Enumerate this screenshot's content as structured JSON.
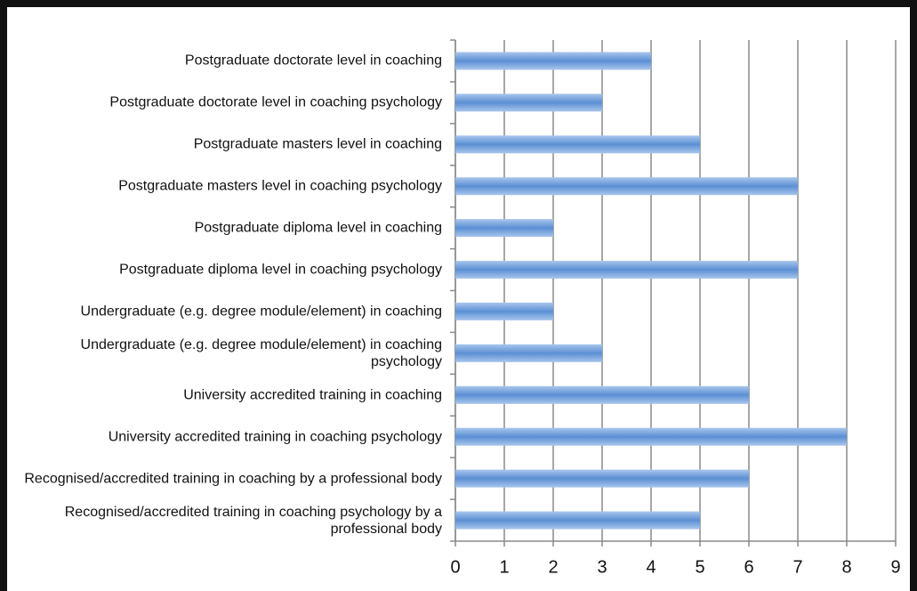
{
  "chart_data": {
    "type": "barh",
    "categories": [
      "Postgraduate doctorate level in coaching",
      "Postgraduate doctorate level in coaching psychology",
      "Postgraduate masters level in coaching",
      "Postgraduate masters level in coaching psychology",
      "Postgraduate diploma level in coaching",
      "Postgraduate diploma level in coaching psychology",
      "Undergraduate (e.g. degree module/element) in coaching",
      "Undergraduate (e.g. degree module/element) in coaching psychology",
      "University accredited training in coaching",
      "University accredited training in coaching psychology",
      "Recognised/accredited training in coaching by a professional body",
      "Recognised/accredited training in coaching psychology by a professional body"
    ],
    "values": [
      4,
      3,
      5,
      7,
      2,
      7,
      2,
      3,
      6,
      8,
      6,
      5
    ],
    "color": "#7ba7dc",
    "xlim": [
      0,
      9
    ],
    "xticks": [
      0,
      1,
      2,
      3,
      4,
      5,
      6,
      7,
      8,
      9
    ],
    "grid": true
  }
}
